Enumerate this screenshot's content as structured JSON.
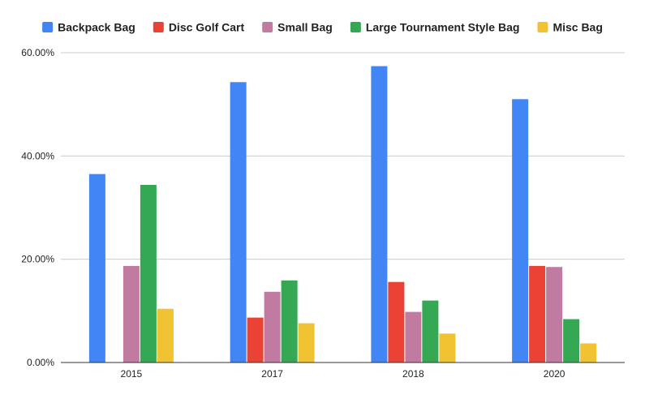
{
  "chart_data": {
    "type": "bar",
    "categories": [
      "2015",
      "2017",
      "2018",
      "2020"
    ],
    "series": [
      {
        "name": "Backpack Bag",
        "color": "#4285f4",
        "values": [
          36.5,
          54.3,
          57.4,
          51.0
        ]
      },
      {
        "name": "Disc Golf Cart",
        "color": "#ea4335",
        "values": [
          0,
          8.7,
          15.6,
          18.7
        ]
      },
      {
        "name": "Small Bag",
        "color": "#c27ba0",
        "values": [
          18.7,
          13.7,
          9.8,
          18.5
        ]
      },
      {
        "name": "Large Tournament Style Bag",
        "color": "#34a853",
        "values": [
          34.4,
          15.9,
          12.0,
          8.4
        ]
      },
      {
        "name": "Misc Bag",
        "color": "#f1c232",
        "values": [
          10.4,
          7.6,
          5.6,
          3.7
        ]
      }
    ],
    "ylim": [
      0,
      60
    ],
    "yticks": [
      0,
      20,
      40,
      60
    ],
    "ytick_labels": [
      "0.00%",
      "20.00%",
      "40.00%",
      "60.00%"
    ],
    "grid": true,
    "legend_position": "top"
  }
}
